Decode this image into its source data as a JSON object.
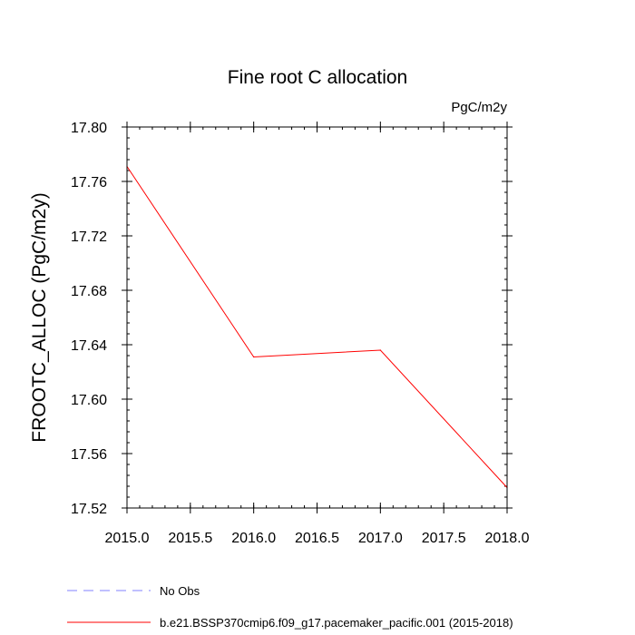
{
  "chart_data": {
    "type": "line",
    "title": "Fine root C allocation",
    "units_label": "PgC/m2y",
    "xlabel": "",
    "ylabel": "FROOTC_ALLOC  (PgC/m2y)",
    "xlim": [
      2015.0,
      2018.0
    ],
    "ylim": [
      17.52,
      17.8
    ],
    "x_major_ticks": [
      2015.0,
      2015.5,
      2016.0,
      2016.5,
      2017.0,
      2017.5,
      2018.0
    ],
    "x_tick_labels": [
      "2015.0",
      "2015.5",
      "2016.0",
      "2016.5",
      "2017.0",
      "2017.5",
      "2018.0"
    ],
    "y_major_ticks": [
      17.52,
      17.56,
      17.6,
      17.64,
      17.68,
      17.72,
      17.76,
      17.8
    ],
    "y_tick_labels": [
      "17.52",
      "17.56",
      "17.60",
      "17.64",
      "17.68",
      "17.72",
      "17.76",
      "17.80"
    ],
    "x_minor_step": 0.1,
    "y_minor_step": 0.008,
    "grid": false,
    "series": [
      {
        "name": "b.e21.BSSP370cmip6.f09_g17.pacemaker_pacific.001 (2015-2018)",
        "color": "#ff0000",
        "dash": "solid",
        "x": [
          2015.0,
          2016.0,
          2017.0,
          2018.0
        ],
        "values": [
          17.771,
          17.631,
          17.636,
          17.535
        ]
      }
    ],
    "legend": [
      {
        "label": "No Obs",
        "color": "#8080ff",
        "dash": "dashed"
      },
      {
        "label": "b.e21.BSSP370cmip6.f09_g17.pacemaker_pacific.001 (2015-2018)",
        "color": "#ff0000",
        "dash": "solid"
      }
    ],
    "legend_position": "bottom-left"
  }
}
